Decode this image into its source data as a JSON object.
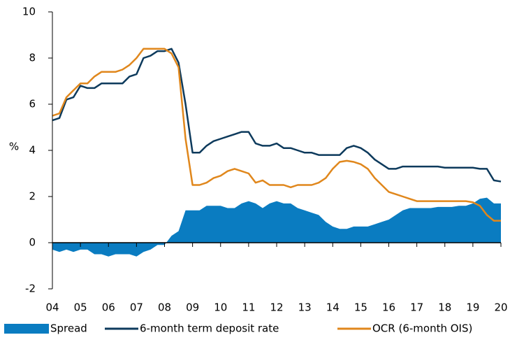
{
  "chart_data": {
    "type": "line",
    "ylabel": "%",
    "xlim": [
      2004,
      2020
    ],
    "ylim": [
      -2,
      10
    ],
    "yticks": [
      -2,
      0,
      2,
      4,
      6,
      8,
      10
    ],
    "xticks": [
      {
        "value": 2004,
        "label": "04"
      },
      {
        "value": 2005,
        "label": "05"
      },
      {
        "value": 2006,
        "label": "06"
      },
      {
        "value": 2007,
        "label": "07"
      },
      {
        "value": 2008,
        "label": "08"
      },
      {
        "value": 2009,
        "label": "09"
      },
      {
        "value": 2010,
        "label": "10"
      },
      {
        "value": 2011,
        "label": "11"
      },
      {
        "value": 2012,
        "label": "12"
      },
      {
        "value": 2013,
        "label": "13"
      },
      {
        "value": 2014,
        "label": "14"
      },
      {
        "value": 2015,
        "label": "15"
      },
      {
        "value": 2016,
        "label": "16"
      },
      {
        "value": 2017,
        "label": "17"
      },
      {
        "value": 2018,
        "label": "18"
      },
      {
        "value": 2019,
        "label": "19"
      },
      {
        "value": 2020,
        "label": "20"
      }
    ],
    "x": [
      2004,
      2004.25,
      2004.5,
      2004.75,
      2005,
      2005.25,
      2005.5,
      2005.75,
      2006,
      2006.25,
      2006.5,
      2006.75,
      2007,
      2007.25,
      2007.5,
      2007.75,
      2008,
      2008.25,
      2008.5,
      2008.75,
      2009,
      2009.25,
      2009.5,
      2009.75,
      2010,
      2010.25,
      2010.5,
      2010.75,
      2011,
      2011.25,
      2011.5,
      2011.75,
      2012,
      2012.25,
      2012.5,
      2012.75,
      2013,
      2013.25,
      2013.5,
      2013.75,
      2014,
      2014.25,
      2014.5,
      2014.75,
      2015,
      2015.25,
      2015.5,
      2015.75,
      2016,
      2016.25,
      2016.5,
      2016.75,
      2017,
      2017.25,
      2017.5,
      2017.75,
      2018,
      2018.25,
      2018.5,
      2018.75,
      2019,
      2019.25,
      2019.5,
      2019.75,
      2020
    ],
    "series": [
      {
        "name": "Spread",
        "kind": "area",
        "color": "#0a7cc1",
        "values": [
          -0.3,
          -0.4,
          -0.3,
          -0.4,
          -0.3,
          -0.3,
          -0.5,
          -0.5,
          -0.6,
          -0.5,
          -0.5,
          -0.5,
          -0.6,
          -0.4,
          -0.3,
          -0.1,
          -0.1,
          0.3,
          0.5,
          1.4,
          1.4,
          1.4,
          1.6,
          1.6,
          1.6,
          1.5,
          1.5,
          1.7,
          1.8,
          1.7,
          1.5,
          1.7,
          1.8,
          1.7,
          1.7,
          1.5,
          1.4,
          1.3,
          1.2,
          0.9,
          0.7,
          0.6,
          0.6,
          0.7,
          0.7,
          0.7,
          0.8,
          0.9,
          1.0,
          1.2,
          1.4,
          1.5,
          1.5,
          1.5,
          1.5,
          1.55,
          1.55,
          1.55,
          1.6,
          1.6,
          1.7,
          1.9,
          1.95,
          1.7,
          1.7
        ]
      },
      {
        "name": "6-month term deposit rate",
        "kind": "line",
        "color": "#0d3a5c",
        "values": [
          5.3,
          5.4,
          6.2,
          6.3,
          6.8,
          6.7,
          6.7,
          6.9,
          6.9,
          6.9,
          6.9,
          7.2,
          7.3,
          8.0,
          8.1,
          8.3,
          8.3,
          8.4,
          7.8,
          6.0,
          3.9,
          3.9,
          4.2,
          4.4,
          4.5,
          4.6,
          4.7,
          4.8,
          4.8,
          4.3,
          4.2,
          4.2,
          4.3,
          4.1,
          4.1,
          4.0,
          3.9,
          3.9,
          3.8,
          3.8,
          3.8,
          3.8,
          4.1,
          4.2,
          4.1,
          3.9,
          3.6,
          3.4,
          3.2,
          3.2,
          3.3,
          3.3,
          3.3,
          3.3,
          3.3,
          3.3,
          3.25,
          3.25,
          3.25,
          3.25,
          3.25,
          3.2,
          3.2,
          2.7,
          2.65
        ]
      },
      {
        "name": "OCR (6-month OIS)",
        "kind": "line",
        "color": "#e0871c",
        "values": [
          5.5,
          5.6,
          6.3,
          6.6,
          6.9,
          6.9,
          7.2,
          7.4,
          7.4,
          7.4,
          7.5,
          7.7,
          8.0,
          8.4,
          8.4,
          8.4,
          8.4,
          8.2,
          7.6,
          4.5,
          2.5,
          2.5,
          2.6,
          2.8,
          2.9,
          3.1,
          3.2,
          3.1,
          3.0,
          2.6,
          2.7,
          2.5,
          2.5,
          2.5,
          2.4,
          2.5,
          2.5,
          2.5,
          2.6,
          2.8,
          3.2,
          3.5,
          3.55,
          3.5,
          3.4,
          3.2,
          2.8,
          2.5,
          2.2,
          2.1,
          2.0,
          1.9,
          1.8,
          1.8,
          1.8,
          1.8,
          1.8,
          1.8,
          1.8,
          1.8,
          1.75,
          1.6,
          1.2,
          0.95,
          0.95
        ]
      }
    ]
  }
}
